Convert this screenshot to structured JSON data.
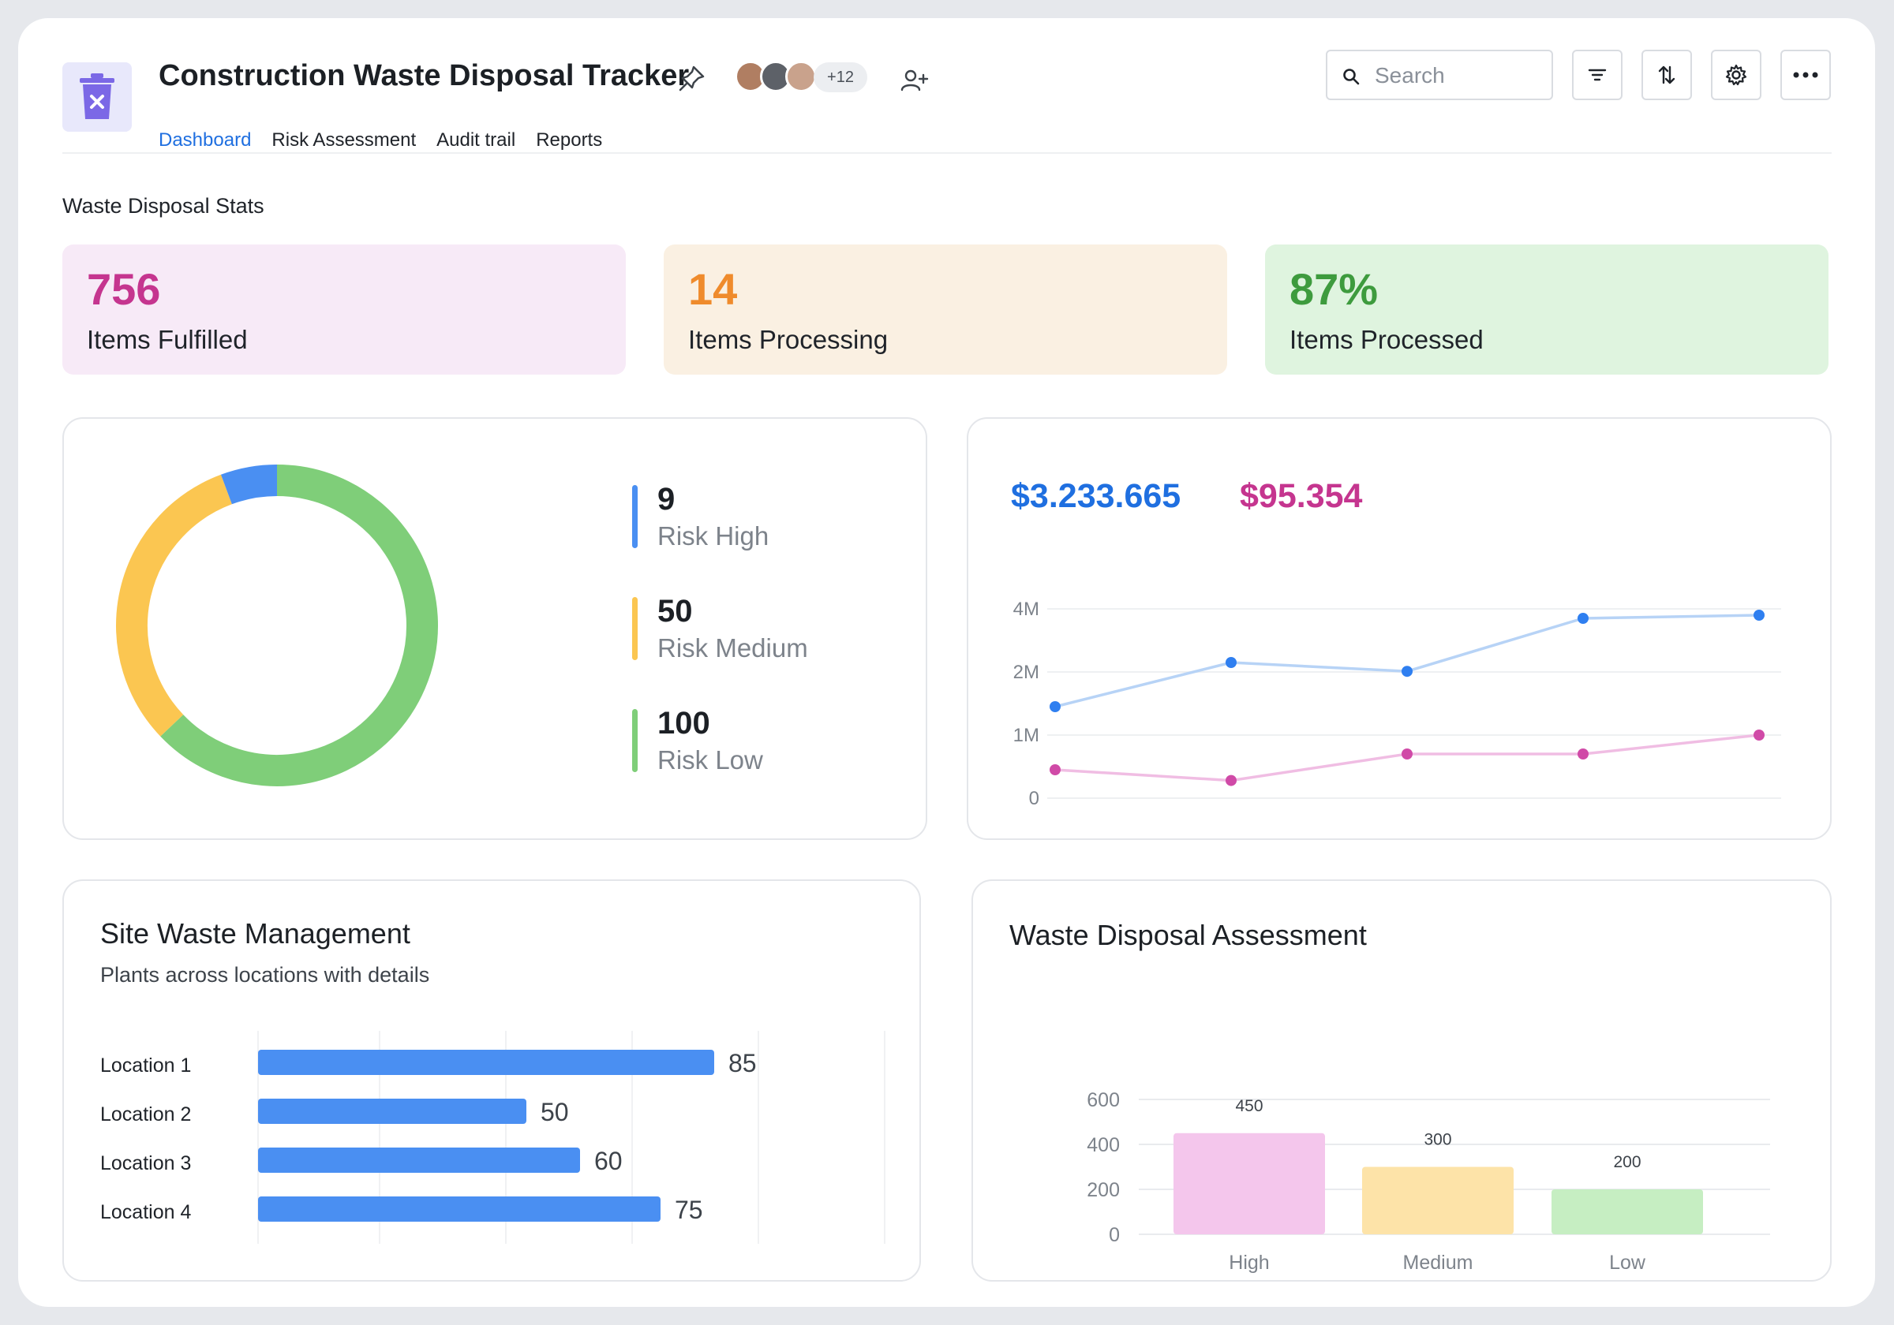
{
  "app": {
    "title": "Construction Waste Disposal Tracker",
    "icon": "trash-x-icon",
    "avatars_more": "+12"
  },
  "tabs": [
    {
      "label": "Dashboard",
      "active": true
    },
    {
      "label": "Risk Assessment",
      "active": false
    },
    {
      "label": "Audit trail",
      "active": false
    },
    {
      "label": "Reports",
      "active": false
    }
  ],
  "toolbar": {
    "search_placeholder": "Search",
    "icons": [
      "filter-icon",
      "sort-icon",
      "settings-icon",
      "more-icon"
    ]
  },
  "stats": {
    "section_title": "Waste Disposal Stats",
    "cards": [
      {
        "value": "756",
        "label": "Items Fulfilled",
        "color": "#c5358f",
        "bg": "#f7eaf7"
      },
      {
        "value": "14",
        "label": "Items Processing",
        "color": "#ef8b2c",
        "bg": "#faf0e2"
      },
      {
        "value": "87%",
        "label": "Items Processed",
        "color": "#3e9b3e",
        "bg": "#dff4df"
      }
    ]
  },
  "risk": {
    "items": [
      {
        "value": "9",
        "label": "Risk High",
        "color": "#4a8ff2"
      },
      {
        "value": "50",
        "label": "Risk Medium",
        "color": "#fbc651"
      },
      {
        "value": "100",
        "label": "Risk Low",
        "color": "#7fce79"
      }
    ]
  },
  "trend": {
    "total_blue": "$3.233.665",
    "total_pink": "$95.354"
  },
  "site": {
    "title": "Site Waste Management",
    "subtitle": "Plants across locations with details"
  },
  "assessment": {
    "title": "Waste Disposal Assessment"
  },
  "chart_data": [
    {
      "type": "pie",
      "categories": [
        "Risk High",
        "Risk Medium",
        "Risk Low"
      ],
      "values": [
        9,
        50,
        100
      ],
      "colors": [
        "#4a8ff2",
        "#fbc651",
        "#7fce79"
      ],
      "donut": true
    },
    {
      "type": "line",
      "x": [
        1,
        2,
        3,
        4,
        5
      ],
      "yticks": [
        "0",
        "1M",
        "2M",
        "4M"
      ],
      "ytick_values": [
        0,
        1000000,
        2000000,
        4000000
      ],
      "ylim": [
        0,
        4000000
      ],
      "grid": true,
      "series": [
        {
          "values": [
            1450000,
            2300000,
            2020000,
            3700000,
            3800000
          ],
          "color": "#2f7ff0",
          "line_color": "#b7d3f6"
        },
        {
          "values": [
            450000,
            280000,
            700000,
            700000,
            1000000
          ],
          "color": "#d04aa7",
          "line_color": "#f0bde3"
        }
      ]
    },
    {
      "type": "bar",
      "orientation": "horizontal",
      "categories": [
        "Location 1",
        "Location 2",
        "Location 3",
        "Location 4"
      ],
      "values": [
        85,
        50,
        60,
        75
      ],
      "color": "#4a8ff2",
      "xlim": [
        0,
        120
      ]
    },
    {
      "type": "bar",
      "categories": [
        "High",
        "Medium",
        "Low"
      ],
      "values": [
        450,
        300,
        200
      ],
      "colors": [
        "#f4c6ec",
        "#fde3a8",
        "#c6eec2"
      ],
      "yticks": [
        "0",
        "200",
        "400",
        "600"
      ],
      "ylim": [
        0,
        600
      ],
      "grid": true
    }
  ]
}
